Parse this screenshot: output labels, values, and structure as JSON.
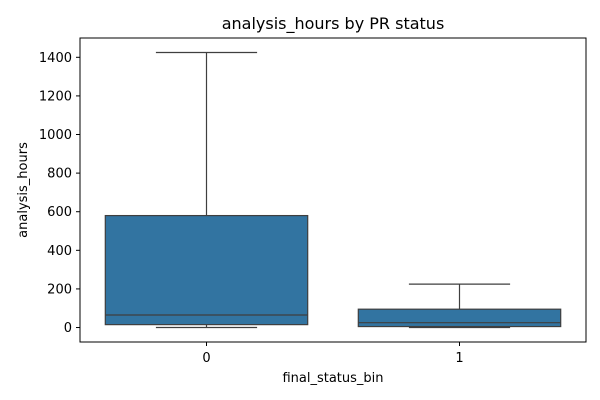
{
  "chart_data": {
    "type": "box",
    "title": "analysis_hours by PR status",
    "xlabel": "final_status_bin",
    "ylabel": "analysis_hours",
    "categories": [
      "0",
      "1"
    ],
    "boxes": [
      {
        "category": "0",
        "whisker_low": 0,
        "q1": 15,
        "median": 65,
        "q3": 580,
        "whisker_high": 1425
      },
      {
        "category": "1",
        "whisker_low": 0,
        "q1": 5,
        "median": 25,
        "q3": 95,
        "whisker_high": 225
      }
    ],
    "ylim": [
      -75,
      1500
    ],
    "yticks": [
      0,
      200,
      400,
      600,
      800,
      1000,
      1200,
      1400
    ],
    "grid": false,
    "box_color": "#3274a1",
    "line_color": "#3f3f3f"
  }
}
